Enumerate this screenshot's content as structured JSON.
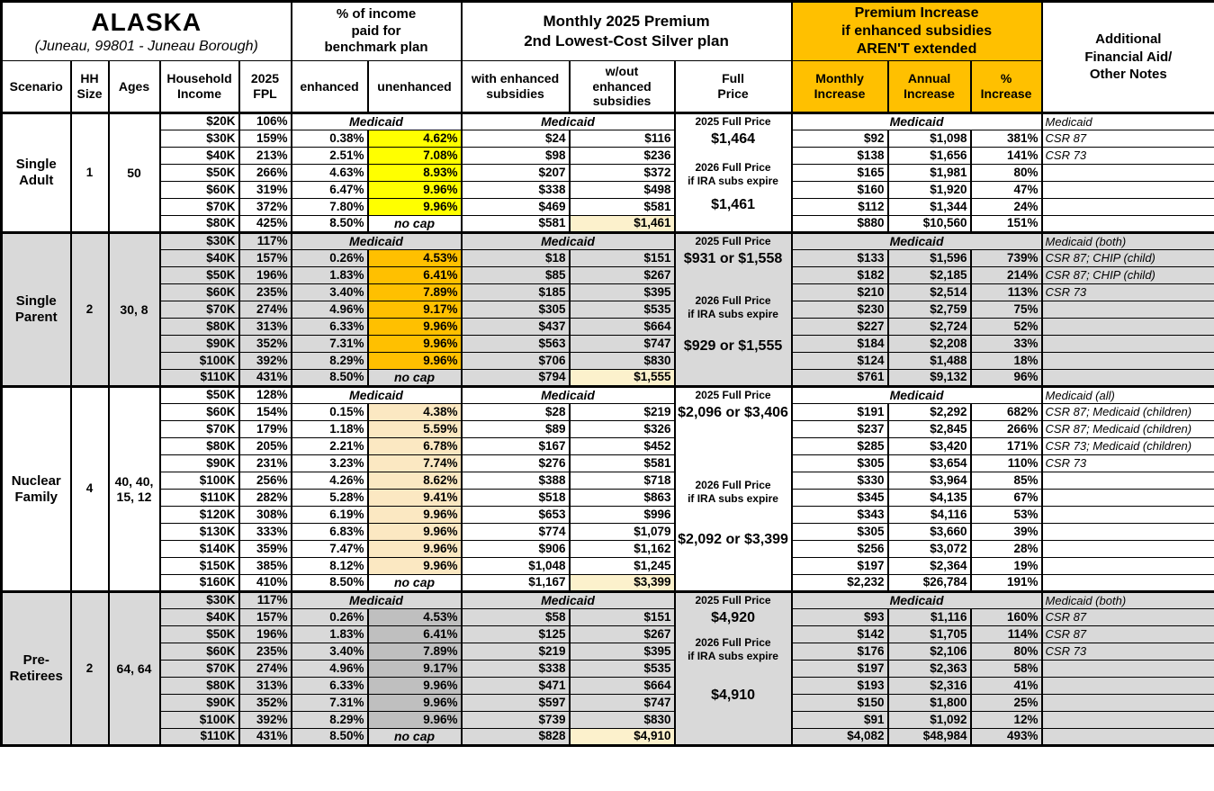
{
  "title": "ALASKA",
  "subtitle": "(Juneau, 99801 - Juneau Borough)",
  "colors": {
    "header_orange": "#FFC000",
    "section_gray": "#D9D9D9",
    "section_white": "#FFFFFF",
    "highlight_cream": "#FCF1CC",
    "highlights": {
      "yellow": "#FFFF00",
      "orange": "#FFC000",
      "tan": "#FBE8C2",
      "gray": "#BFBFBF"
    }
  },
  "headers": {
    "pct_income_group": "% of income\npaid for\nbenchmark plan",
    "premium_group": "Monthly 2025 Premium\n2nd Lowest-Cost Silver plan",
    "increase_group": "Premium Increase\nif enhanced subsidies\nAREN'T extended",
    "notes": "Additional\nFinancial Aid/\nOther Notes",
    "scenario": "Scenario",
    "hh_size": "HH\nSize",
    "ages": "Ages",
    "household_income": "Household\nIncome",
    "fpl": "2025\nFPL",
    "enhanced": "enhanced",
    "unenhanced": "unenhanced",
    "with_subsidies": "with enhanced\nsubsidies",
    "without_subsidies": "w/out\nenhanced\nsubsidies",
    "full_price": "Full\nPrice",
    "monthly_increase": "Monthly\nIncrease",
    "annual_increase": "Annual\nIncrease",
    "pct_increase": "%\nIncrease"
  },
  "sections": [
    {
      "scenario": "Single\nAdult",
      "hh_size": "1",
      "ages": "50",
      "bg": "white",
      "highlight": "yellow",
      "full_price": {
        "label_2025": "2025 Full Price",
        "price_2025": "$1,464",
        "label_2026": "2026 Full Price\nif IRA subs expire",
        "price_2026": "$1,461"
      },
      "medicaid_row": {
        "income": "$20K",
        "fpl": "106%",
        "pct_income": "Medicaid",
        "premium": "Medicaid",
        "increase": "Medicaid",
        "note": "Medicaid"
      },
      "rows": [
        {
          "income": "$30K",
          "fpl": "159%",
          "enhanced": "0.38%",
          "unenhanced": "4.62%",
          "with_subsidies": "$24",
          "without_subsidies": "$116",
          "monthly_increase": "$92",
          "annual_increase": "$1,098",
          "pct_increase": "381%",
          "note": "CSR 87"
        },
        {
          "income": "$40K",
          "fpl": "213%",
          "enhanced": "2.51%",
          "unenhanced": "7.08%",
          "with_subsidies": "$98",
          "without_subsidies": "$236",
          "monthly_increase": "$138",
          "annual_increase": "$1,656",
          "pct_increase": "141%",
          "note": "CSR 73"
        },
        {
          "income": "$50K",
          "fpl": "266%",
          "enhanced": "4.63%",
          "unenhanced": "8.93%",
          "with_subsidies": "$207",
          "without_subsidies": "$372",
          "monthly_increase": "$165",
          "annual_increase": "$1,981",
          "pct_increase": "80%",
          "note": ""
        },
        {
          "income": "$60K",
          "fpl": "319%",
          "enhanced": "6.47%",
          "unenhanced": "9.96%",
          "with_subsidies": "$338",
          "without_subsidies": "$498",
          "monthly_increase": "$160",
          "annual_increase": "$1,920",
          "pct_increase": "47%",
          "note": ""
        },
        {
          "income": "$70K",
          "fpl": "372%",
          "enhanced": "7.80%",
          "unenhanced": "9.96%",
          "with_subsidies": "$469",
          "without_subsidies": "$581",
          "monthly_increase": "$112",
          "annual_increase": "$1,344",
          "pct_increase": "24%",
          "note": ""
        },
        {
          "income": "$80K",
          "fpl": "425%",
          "enhanced": "8.50%",
          "unenhanced": "no cap",
          "with_subsidies": "$581",
          "without_subsidies": "$1,461",
          "monthly_increase": "$880",
          "annual_increase": "$10,560",
          "pct_increase": "151%",
          "note": ""
        }
      ]
    },
    {
      "scenario": "Single\nParent",
      "hh_size": "2",
      "ages": "30, 8",
      "bg": "gray",
      "highlight": "orange",
      "full_price": {
        "label_2025": "2025 Full Price",
        "price_2025": "$931 or $1,558",
        "label_2026": "2026 Full Price\nif IRA subs expire",
        "price_2026": "$929 or $1,555"
      },
      "medicaid_row": {
        "income": "$30K",
        "fpl": "117%",
        "pct_income": "Medicaid",
        "premium": "Medicaid",
        "increase": "Medicaid",
        "note": "Medicaid (both)"
      },
      "rows": [
        {
          "income": "$40K",
          "fpl": "157%",
          "enhanced": "0.26%",
          "unenhanced": "4.53%",
          "with_subsidies": "$18",
          "without_subsidies": "$151",
          "monthly_increase": "$133",
          "annual_increase": "$1,596",
          "pct_increase": "739%",
          "note": "CSR 87; CHIP (child)"
        },
        {
          "income": "$50K",
          "fpl": "196%",
          "enhanced": "1.83%",
          "unenhanced": "6.41%",
          "with_subsidies": "$85",
          "without_subsidies": "$267",
          "monthly_increase": "$182",
          "annual_increase": "$2,185",
          "pct_increase": "214%",
          "note": "CSR 87; CHIP (child)"
        },
        {
          "income": "$60K",
          "fpl": "235%",
          "enhanced": "3.40%",
          "unenhanced": "7.89%",
          "with_subsidies": "$185",
          "without_subsidies": "$395",
          "monthly_increase": "$210",
          "annual_increase": "$2,514",
          "pct_increase": "113%",
          "note": "CSR 73"
        },
        {
          "income": "$70K",
          "fpl": "274%",
          "enhanced": "4.96%",
          "unenhanced": "9.17%",
          "with_subsidies": "$305",
          "without_subsidies": "$535",
          "monthly_increase": "$230",
          "annual_increase": "$2,759",
          "pct_increase": "75%",
          "note": ""
        },
        {
          "income": "$80K",
          "fpl": "313%",
          "enhanced": "6.33%",
          "unenhanced": "9.96%",
          "with_subsidies": "$437",
          "without_subsidies": "$664",
          "monthly_increase": "$227",
          "annual_increase": "$2,724",
          "pct_increase": "52%",
          "note": ""
        },
        {
          "income": "$90K",
          "fpl": "352%",
          "enhanced": "7.31%",
          "unenhanced": "9.96%",
          "with_subsidies": "$563",
          "without_subsidies": "$747",
          "monthly_increase": "$184",
          "annual_increase": "$2,208",
          "pct_increase": "33%",
          "note": ""
        },
        {
          "income": "$100K",
          "fpl": "392%",
          "enhanced": "8.29%",
          "unenhanced": "9.96%",
          "with_subsidies": "$706",
          "without_subsidies": "$830",
          "monthly_increase": "$124",
          "annual_increase": "$1,488",
          "pct_increase": "18%",
          "note": ""
        },
        {
          "income": "$110K",
          "fpl": "431%",
          "enhanced": "8.50%",
          "unenhanced": "no cap",
          "with_subsidies": "$794",
          "without_subsidies": "$1,555",
          "monthly_increase": "$761",
          "annual_increase": "$9,132",
          "pct_increase": "96%",
          "note": ""
        }
      ]
    },
    {
      "scenario": "Nuclear\nFamily",
      "hh_size": "4",
      "ages": "40, 40,\n15, 12",
      "bg": "white",
      "highlight": "tan",
      "full_price": {
        "label_2025": "2025 Full Price",
        "price_2025": "$2,096 or $3,406",
        "label_2026": "2026 Full Price\nif IRA subs expire",
        "price_2026": "$2,092 or $3,399"
      },
      "medicaid_row": {
        "income": "$50K",
        "fpl": "128%",
        "pct_income": "Medicaid",
        "premium": "Medicaid",
        "increase": "Medicaid",
        "note": "Medicaid (all)"
      },
      "rows": [
        {
          "income": "$60K",
          "fpl": "154%",
          "enhanced": "0.15%",
          "unenhanced": "4.38%",
          "with_subsidies": "$28",
          "without_subsidies": "$219",
          "monthly_increase": "$191",
          "annual_increase": "$2,292",
          "pct_increase": "682%",
          "note": "CSR 87; Medicaid (children)"
        },
        {
          "income": "$70K",
          "fpl": "179%",
          "enhanced": "1.18%",
          "unenhanced": "5.59%",
          "with_subsidies": "$89",
          "without_subsidies": "$326",
          "monthly_increase": "$237",
          "annual_increase": "$2,845",
          "pct_increase": "266%",
          "note": "CSR 87; Medicaid (children)"
        },
        {
          "income": "$80K",
          "fpl": "205%",
          "enhanced": "2.21%",
          "unenhanced": "6.78%",
          "with_subsidies": "$167",
          "without_subsidies": "$452",
          "monthly_increase": "$285",
          "annual_increase": "$3,420",
          "pct_increase": "171%",
          "note": "CSR 73; Medicaid (children)"
        },
        {
          "income": "$90K",
          "fpl": "231%",
          "enhanced": "3.23%",
          "unenhanced": "7.74%",
          "with_subsidies": "$276",
          "without_subsidies": "$581",
          "monthly_increase": "$305",
          "annual_increase": "$3,654",
          "pct_increase": "110%",
          "note": "CSR 73"
        },
        {
          "income": "$100K",
          "fpl": "256%",
          "enhanced": "4.26%",
          "unenhanced": "8.62%",
          "with_subsidies": "$388",
          "without_subsidies": "$718",
          "monthly_increase": "$330",
          "annual_increase": "$3,964",
          "pct_increase": "85%",
          "note": ""
        },
        {
          "income": "$110K",
          "fpl": "282%",
          "enhanced": "5.28%",
          "unenhanced": "9.41%",
          "with_subsidies": "$518",
          "without_subsidies": "$863",
          "monthly_increase": "$345",
          "annual_increase": "$4,135",
          "pct_increase": "67%",
          "note": ""
        },
        {
          "income": "$120K",
          "fpl": "308%",
          "enhanced": "6.19%",
          "unenhanced": "9.96%",
          "with_subsidies": "$653",
          "without_subsidies": "$996",
          "monthly_increase": "$343",
          "annual_increase": "$4,116",
          "pct_increase": "53%",
          "note": ""
        },
        {
          "income": "$130K",
          "fpl": "333%",
          "enhanced": "6.83%",
          "unenhanced": "9.96%",
          "with_subsidies": "$774",
          "without_subsidies": "$1,079",
          "monthly_increase": "$305",
          "annual_increase": "$3,660",
          "pct_increase": "39%",
          "note": ""
        },
        {
          "income": "$140K",
          "fpl": "359%",
          "enhanced": "7.47%",
          "unenhanced": "9.96%",
          "with_subsidies": "$906",
          "without_subsidies": "$1,162",
          "monthly_increase": "$256",
          "annual_increase": "$3,072",
          "pct_increase": "28%",
          "note": ""
        },
        {
          "income": "$150K",
          "fpl": "385%",
          "enhanced": "8.12%",
          "unenhanced": "9.96%",
          "with_subsidies": "$1,048",
          "without_subsidies": "$1,245",
          "monthly_increase": "$197",
          "annual_increase": "$2,364",
          "pct_increase": "19%",
          "note": ""
        },
        {
          "income": "$160K",
          "fpl": "410%",
          "enhanced": "8.50%",
          "unenhanced": "no cap",
          "with_subsidies": "$1,167",
          "without_subsidies": "$3,399",
          "monthly_increase": "$2,232",
          "annual_increase": "$26,784",
          "pct_increase": "191%",
          "note": ""
        }
      ]
    },
    {
      "scenario": "Pre-\nRetirees",
      "hh_size": "2",
      "ages": "64, 64",
      "bg": "gray",
      "highlight": "gray",
      "full_price": {
        "label_2025": "2025 Full Price",
        "price_2025": "$4,920",
        "label_2026": "2026 Full Price\nif IRA subs expire",
        "price_2026": "$4,910"
      },
      "medicaid_row": {
        "income": "$30K",
        "fpl": "117%",
        "pct_income": "Medicaid",
        "premium": "Medicaid",
        "increase": "Medicaid",
        "note": "Medicaid (both)"
      },
      "rows": [
        {
          "income": "$40K",
          "fpl": "157%",
          "enhanced": "0.26%",
          "unenhanced": "4.53%",
          "with_subsidies": "$58",
          "without_subsidies": "$151",
          "monthly_increase": "$93",
          "annual_increase": "$1,116",
          "pct_increase": "160%",
          "note": "CSR 87"
        },
        {
          "income": "$50K",
          "fpl": "196%",
          "enhanced": "1.83%",
          "unenhanced": "6.41%",
          "with_subsidies": "$125",
          "without_subsidies": "$267",
          "monthly_increase": "$142",
          "annual_increase": "$1,705",
          "pct_increase": "114%",
          "note": "CSR 87"
        },
        {
          "income": "$60K",
          "fpl": "235%",
          "enhanced": "3.40%",
          "unenhanced": "7.89%",
          "with_subsidies": "$219",
          "without_subsidies": "$395",
          "monthly_increase": "$176",
          "annual_increase": "$2,106",
          "pct_increase": "80%",
          "note": "CSR 73"
        },
        {
          "income": "$70K",
          "fpl": "274%",
          "enhanced": "4.96%",
          "unenhanced": "9.17%",
          "with_subsidies": "$338",
          "without_subsidies": "$535",
          "monthly_increase": "$197",
          "annual_increase": "$2,363",
          "pct_increase": "58%",
          "note": ""
        },
        {
          "income": "$80K",
          "fpl": "313%",
          "enhanced": "6.33%",
          "unenhanced": "9.96%",
          "with_subsidies": "$471",
          "without_subsidies": "$664",
          "monthly_increase": "$193",
          "annual_increase": "$2,316",
          "pct_increase": "41%",
          "note": ""
        },
        {
          "income": "$90K",
          "fpl": "352%",
          "enhanced": "7.31%",
          "unenhanced": "9.96%",
          "with_subsidies": "$597",
          "without_subsidies": "$747",
          "monthly_increase": "$150",
          "annual_increase": "$1,800",
          "pct_increase": "25%",
          "note": ""
        },
        {
          "income": "$100K",
          "fpl": "392%",
          "enhanced": "8.29%",
          "unenhanced": "9.96%",
          "with_subsidies": "$739",
          "without_subsidies": "$830",
          "monthly_increase": "$91",
          "annual_increase": "$1,092",
          "pct_increase": "12%",
          "note": ""
        },
        {
          "income": "$110K",
          "fpl": "431%",
          "enhanced": "8.50%",
          "unenhanced": "no cap",
          "with_subsidies": "$828",
          "without_subsidies": "$4,910",
          "monthly_increase": "$4,082",
          "annual_increase": "$48,984",
          "pct_increase": "493%",
          "note": ""
        }
      ]
    }
  ]
}
